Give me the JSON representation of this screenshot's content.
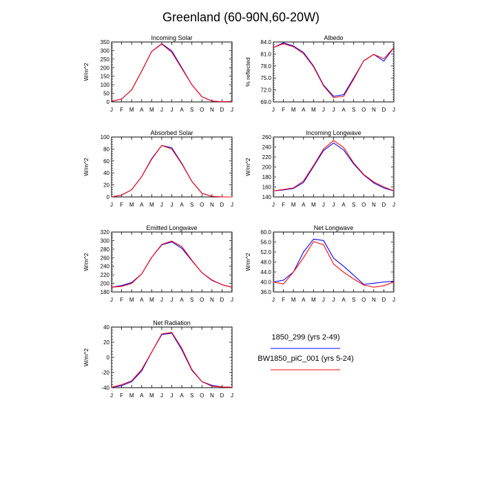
{
  "figure": {
    "title": "Greenland (60-90N,60-20W)",
    "colors": {
      "series1": "#0000ff",
      "series2": "#ff0000"
    },
    "legend": [
      {
        "label": "1850_299 (yrs 2-49)",
        "color": "#0000ff"
      },
      {
        "label": "BW1850_piC_001 (yrs 5-24)",
        "color": "#ff0000"
      }
    ]
  },
  "chart_data": [
    {
      "type": "line",
      "title": "Incoming Solar",
      "ylabel": "W/m^2",
      "x": [
        "J",
        "F",
        "M",
        "A",
        "M",
        "J",
        "J",
        "A",
        "S",
        "O",
        "N",
        "D",
        "J"
      ],
      "ylim": [
        0,
        350
      ],
      "yticks": [
        0,
        50,
        100,
        150,
        200,
        250,
        300,
        350
      ],
      "ytick_labels": [
        "0",
        "50",
        "100",
        "150",
        "200",
        "250",
        "300",
        "350"
      ],
      "series": [
        {
          "values": [
            3,
            17,
            70,
            180,
            295,
            340,
            298,
            200,
            100,
            30,
            5,
            1,
            3
          ]
        },
        {
          "values": [
            3,
            17,
            70,
            180,
            295,
            338,
            290,
            195,
            100,
            30,
            5,
            1,
            3
          ]
        }
      ]
    },
    {
      "type": "line",
      "title": "Albedo",
      "ylabel": "% reflected",
      "x": [
        "J",
        "F",
        "M",
        "A",
        "M",
        "J",
        "J",
        "A",
        "S",
        "O",
        "N",
        "D",
        "J"
      ],
      "ylim": [
        69,
        84
      ],
      "yticks": [
        69,
        72,
        75,
        78,
        81,
        84
      ],
      "ytick_labels": [
        "69.0",
        "72.0",
        "75.0",
        "78.0",
        "81.0",
        "84.0"
      ],
      "series": [
        {
          "values": [
            82.6,
            83.8,
            83.0,
            81.4,
            78.0,
            73.2,
            70.4,
            70.8,
            75.0,
            79.3,
            80.9,
            79.2,
            82.6
          ]
        },
        {
          "values": [
            82.6,
            83.6,
            82.8,
            81.1,
            77.8,
            73.0,
            70.1,
            70.4,
            74.7,
            79.3,
            80.9,
            79.8,
            82.6
          ]
        }
      ]
    },
    {
      "type": "line",
      "title": "Absorbed Solar",
      "ylabel": "W/m^2",
      "x": [
        "J",
        "F",
        "M",
        "A",
        "M",
        "J",
        "J",
        "A",
        "S",
        "O",
        "N",
        "D",
        "J"
      ],
      "ylim": [
        0,
        100
      ],
      "yticks": [
        0,
        20,
        40,
        60,
        80,
        100
      ],
      "ytick_labels": [
        "0",
        "20",
        "40",
        "60",
        "80",
        "100"
      ],
      "series": [
        {
          "values": [
            0,
            3,
            12,
            34,
            64,
            86,
            82,
            56,
            26,
            6,
            1,
            0,
            0
          ]
        },
        {
          "values": [
            0,
            3,
            12,
            34,
            63,
            86,
            80,
            55,
            26,
            6,
            1,
            0,
            0
          ]
        }
      ]
    },
    {
      "type": "line",
      "title": "Incoming Longwave",
      "ylabel": "W/m^2",
      "x": [
        "J",
        "F",
        "M",
        "A",
        "M",
        "J",
        "J",
        "A",
        "S",
        "O",
        "N",
        "D",
        "J"
      ],
      "ylim": [
        140,
        260
      ],
      "yticks": [
        140,
        160,
        180,
        200,
        220,
        240,
        260
      ],
      "ytick_labels": [
        "140",
        "160",
        "180",
        "200",
        "220",
        "240",
        "260"
      ],
      "series": [
        {
          "values": [
            152,
            154,
            157,
            169,
            201,
            233,
            248,
            234,
            206,
            184,
            168,
            158,
            152
          ]
        },
        {
          "values": [
            152,
            155,
            158,
            172,
            203,
            236,
            253,
            239,
            208,
            185,
            170,
            160,
            152
          ]
        }
      ]
    },
    {
      "type": "line",
      "title": "Emitted Longwave",
      "ylabel": "W/m^2",
      "x": [
        "J",
        "F",
        "M",
        "A",
        "M",
        "J",
        "J",
        "A",
        "S",
        "O",
        "N",
        "D",
        "J"
      ],
      "ylim": [
        180,
        320
      ],
      "yticks": [
        180,
        200,
        220,
        240,
        260,
        280,
        300,
        320
      ],
      "ytick_labels": [
        "180",
        "200",
        "220",
        "240",
        "260",
        "280",
        "300",
        "320"
      ],
      "series": [
        {
          "values": [
            191,
            195,
            202,
            222,
            261,
            290,
            297,
            282,
            253,
            225,
            207,
            197,
            191
          ]
        },
        {
          "values": [
            191,
            193,
            200,
            222,
            261,
            291,
            299,
            286,
            254,
            225,
            208,
            197,
            191
          ]
        }
      ]
    },
    {
      "type": "line",
      "title": "Net Longwave",
      "ylabel": "W/m^2",
      "x": [
        "J",
        "F",
        "M",
        "A",
        "M",
        "J",
        "J",
        "A",
        "S",
        "O",
        "N",
        "D",
        "J"
      ],
      "ylim": [
        36,
        60
      ],
      "yticks": [
        36,
        40,
        44,
        48,
        52,
        56,
        60
      ],
      "ytick_labels": [
        "36.0",
        "40.0",
        "44.0",
        "48.0",
        "52.0",
        "56.0",
        "60.0"
      ],
      "series": [
        {
          "values": [
            40.0,
            40.7,
            44.0,
            52.0,
            57.2,
            56.6,
            49.5,
            46.3,
            42.7,
            39.0,
            39.5,
            40.0,
            40.3
          ]
        },
        {
          "values": [
            40.0,
            39.2,
            44.0,
            49.7,
            56.2,
            54.9,
            47.2,
            43.9,
            41.2,
            38.8,
            37.9,
            38.5,
            40.0
          ]
        }
      ]
    },
    {
      "type": "line",
      "title": "Net Radiation",
      "ylabel": "W/m^2",
      "x": [
        "J",
        "F",
        "M",
        "A",
        "M",
        "J",
        "J",
        "A",
        "S",
        "O",
        "N",
        "D",
        "J"
      ],
      "ylim": [
        -40,
        40
      ],
      "yticks": [
        -40,
        -20,
        0,
        20,
        40
      ],
      "ytick_labels": [
        "-40",
        "-20",
        "0",
        "20",
        "40"
      ],
      "series": [
        {
          "values": [
            -39.5,
            -37.5,
            -32,
            -18,
            7,
            30,
            32,
            10,
            -17,
            -32,
            -37,
            -39,
            -39.5
          ]
        },
        {
          "values": [
            -39.5,
            -36,
            -31,
            -16,
            7,
            31,
            33,
            12,
            -16,
            -32,
            -38,
            -39,
            -39.5
          ]
        }
      ]
    }
  ]
}
